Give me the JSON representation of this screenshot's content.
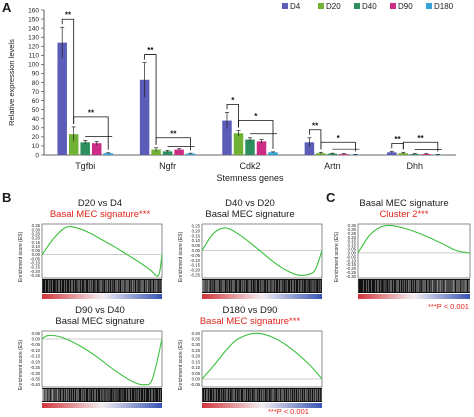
{
  "panels": {
    "a": "A",
    "b": "B",
    "c": "C"
  },
  "chart_data": [
    {
      "type": "bar",
      "xlabel": "Stemness genes",
      "ylabel": "Relative expression levels",
      "ylim": [
        0,
        160
      ],
      "yticks": [
        0,
        10,
        20,
        30,
        40,
        50,
        60,
        70,
        80,
        90,
        100,
        110,
        120,
        130,
        140,
        150,
        160
      ],
      "categories": [
        "Tgfbi",
        "Ngfr",
        "Cdk2",
        "Artn",
        "Dhh"
      ],
      "legend_position": "top-right",
      "series": [
        {
          "name": "D4",
          "color": "#5b5db8",
          "values": [
            124,
            83,
            38,
            14,
            3
          ],
          "errors": [
            17,
            19,
            9,
            5,
            1
          ]
        },
        {
          "name": "D20",
          "color": "#71b234",
          "values": [
            23,
            6,
            24,
            2,
            2
          ],
          "errors": [
            8,
            2,
            3,
            1,
            1
          ]
        },
        {
          "name": "D40",
          "color": "#2e8e5e",
          "values": [
            14,
            4,
            17,
            1.5,
            1
          ],
          "errors": [
            2,
            1,
            2,
            0.5,
            0.5
          ]
        },
        {
          "name": "D90",
          "color": "#cc2b86",
          "values": [
            13,
            6,
            15,
            1,
            1
          ],
          "errors": [
            2,
            1,
            2,
            0.5,
            0.5
          ]
        },
        {
          "name": "D180",
          "color": "#37a2d8",
          "values": [
            2,
            1.5,
            3,
            0.5,
            0.5
          ],
          "errors": [
            0.5,
            0.5,
            0.5,
            0.2,
            0.2
          ]
        }
      ],
      "significance": [
        {
          "category": "Tgfbi",
          "label": "**"
        },
        {
          "category": "Tgfbi",
          "label": "**"
        },
        {
          "category": "Ngfr",
          "label": "**"
        },
        {
          "category": "Ngfr",
          "label": "**"
        },
        {
          "category": "Cdk2",
          "label": "*"
        },
        {
          "category": "Cdk2",
          "label": "*"
        },
        {
          "category": "Artn",
          "label": "**"
        },
        {
          "category": "Artn",
          "label": "*"
        },
        {
          "category": "Dhh",
          "label": "**"
        },
        {
          "category": "Dhh",
          "label": "**"
        }
      ]
    },
    {
      "type": "line",
      "panel": "B",
      "title": "D20 vs D4",
      "subtitle": "Basal MEC signature***",
      "ylabel": "Enrichment score (ES)",
      "yticks": [
        "0.35",
        "0.30",
        "0.25",
        "0.20",
        "0.15",
        "0.10",
        "0.05",
        "0.00",
        "-0.05",
        "-0.10",
        "-0.15",
        "-0.20",
        "-0.25"
      ],
      "ylim": [
        -0.28,
        0.37
      ],
      "x": [
        0,
        0.1,
        0.2,
        0.3,
        0.4,
        0.5,
        0.6,
        0.7,
        0.8,
        0.9,
        0.97,
        1.0
      ],
      "y": [
        0.0,
        0.2,
        0.33,
        0.32,
        0.26,
        0.18,
        0.1,
        0.01,
        -0.08,
        -0.18,
        -0.25,
        0.0
      ]
    },
    {
      "type": "line",
      "panel": "B",
      "title": "D40 vs D20",
      "subtitle": "Basal MEC signature",
      "ylabel": "Enrichment score (ES)",
      "yticks": [
        "0.25",
        "0.20",
        "0.15",
        "0.10",
        "0.05",
        "0.00",
        "-0.05",
        "-0.10",
        "-0.15",
        "-0.20",
        "-0.25"
      ],
      "ylim": [
        -0.28,
        0.27
      ],
      "x": [
        0,
        0.1,
        0.2,
        0.3,
        0.4,
        0.5,
        0.6,
        0.7,
        0.8,
        0.9,
        0.95,
        1.0
      ],
      "y": [
        0.0,
        0.18,
        0.23,
        0.17,
        0.08,
        -0.02,
        -0.12,
        -0.2,
        -0.25,
        -0.24,
        -0.18,
        0.0
      ]
    },
    {
      "type": "line",
      "panel": "B",
      "title": "D90 vs D40",
      "subtitle": "Basal MEC signature",
      "ylabel": "Enrichment score (ES)",
      "yticks": [
        "0.05",
        "0.00",
        "-0.05",
        "-0.10",
        "-0.15",
        "-0.20",
        "-0.25",
        "-0.30",
        "-0.35",
        "-0.40"
      ],
      "ylim": [
        -0.42,
        0.07
      ],
      "x": [
        0,
        0.05,
        0.15,
        0.3,
        0.45,
        0.6,
        0.75,
        0.85,
        0.92,
        1.0
      ],
      "y": [
        0.0,
        0.03,
        0.02,
        -0.05,
        -0.15,
        -0.27,
        -0.37,
        -0.4,
        -0.35,
        0.0
      ]
    },
    {
      "type": "line",
      "panel": "B",
      "title": "D180 vs D90",
      "subtitle": "Basal MEC signature***",
      "ylabel": "Enrichment score (ES)",
      "yticks": [
        "0.40",
        "0.35",
        "0.30",
        "0.25",
        "0.20",
        "0.15",
        "0.10",
        "0.05",
        "0.00",
        "-0.05"
      ],
      "ylim": [
        -0.07,
        0.42
      ],
      "x": [
        0,
        0.1,
        0.2,
        0.3,
        0.45,
        0.6,
        0.75,
        0.9,
        1.0
      ],
      "y": [
        0.0,
        0.12,
        0.25,
        0.35,
        0.4,
        0.36,
        0.26,
        0.12,
        0.0
      ]
    },
    {
      "type": "line",
      "panel": "C",
      "title": "Basal MEC signature",
      "subtitle": "Cluster 2***",
      "ylabel": "Enrichment score (ES)",
      "yticks": [
        "0.35",
        "0.30",
        "0.25",
        "0.20",
        "0.15",
        "0.10",
        "0.05",
        "0.00",
        "-0.05",
        "-0.10",
        "-0.15",
        "-0.20",
        "-0.25",
        "-0.30"
      ],
      "ylim": [
        -0.32,
        0.37
      ],
      "x": [
        0,
        0.1,
        0.2,
        0.3,
        0.45,
        0.6,
        0.75,
        0.88,
        1.0
      ],
      "y": [
        0.0,
        0.22,
        0.33,
        0.35,
        0.3,
        0.22,
        0.12,
        0.03,
        0.0
      ]
    }
  ],
  "footnotes": {
    "c": "***P < 0.001",
    "b": "***P < 0.001"
  }
}
